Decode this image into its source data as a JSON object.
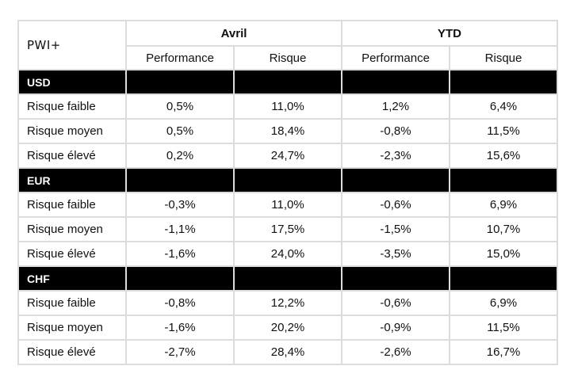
{
  "brand": "PWI+",
  "headers": {
    "groups": [
      "Avril",
      "YTD"
    ],
    "sub": [
      "Performance",
      "Risque",
      "Performance",
      "Risque"
    ]
  },
  "sections": [
    {
      "currency": "USD",
      "rows": [
        {
          "label": "Risque faible",
          "values": [
            "0,5%",
            "11,0%",
            "1,2%",
            "6,4%"
          ]
        },
        {
          "label": "Risque moyen",
          "values": [
            "0,5%",
            "18,4%",
            "-0,8%",
            "11,5%"
          ]
        },
        {
          "label": "Risque élevé",
          "values": [
            "0,2%",
            "24,7%",
            "-2,3%",
            "15,6%"
          ]
        }
      ]
    },
    {
      "currency": "EUR",
      "rows": [
        {
          "label": "Risque faible",
          "values": [
            "-0,3%",
            "11,0%",
            "-0,6%",
            "6,9%"
          ]
        },
        {
          "label": "Risque moyen",
          "values": [
            "-1,1%",
            "17,5%",
            "-1,5%",
            "10,7%"
          ]
        },
        {
          "label": "Risque élevé",
          "values": [
            "-1,6%",
            "24,0%",
            "-3,5%",
            "15,0%"
          ]
        }
      ]
    },
    {
      "currency": "CHF",
      "rows": [
        {
          "label": "Risque faible",
          "values": [
            "-0,8%",
            "12,2%",
            "-0,6%",
            "6,9%"
          ]
        },
        {
          "label": "Risque moyen",
          "values": [
            "-1,6%",
            "20,2%",
            "-0,9%",
            "11,5%"
          ]
        },
        {
          "label": "Risque élevé",
          "values": [
            "-2,7%",
            "28,4%",
            "-2,6%",
            "16,7%"
          ]
        }
      ]
    }
  ]
}
